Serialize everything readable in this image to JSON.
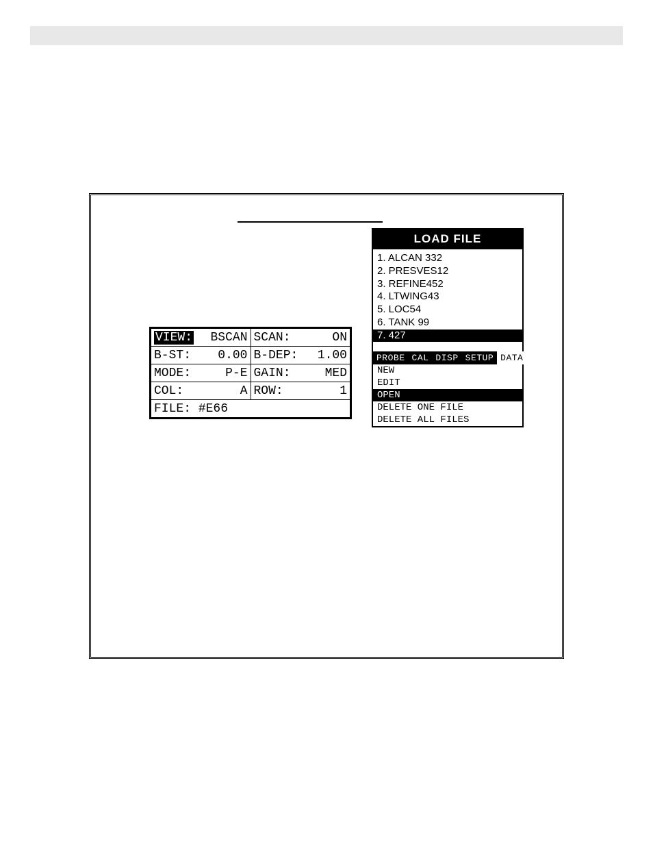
{
  "settings": {
    "rows": [
      {
        "l_label": "VIEW:",
        "l_value": "BSCAN",
        "l_label_inverted": true,
        "r_label": "SCAN:",
        "r_value": "ON"
      },
      {
        "l_label": "B-ST:",
        "l_value": "0.00",
        "r_label": "B-DEP:",
        "r_value": "1.00"
      },
      {
        "l_label": "MODE:",
        "l_value": "P-E",
        "r_label": "GAIN:",
        "r_value": "MED"
      },
      {
        "l_label": "COL:",
        "l_value": "A",
        "r_label": "ROW:",
        "r_value": "1"
      }
    ],
    "file_label": "FILE:",
    "file_value": "#E66"
  },
  "load_panel": {
    "title": "LOAD FILE",
    "files": [
      {
        "text": "1. ALCAN 332",
        "selected": false
      },
      {
        "text": "2. PRESVES12",
        "selected": false
      },
      {
        "text": "3. REFINE452",
        "selected": false
      },
      {
        "text": "4. LTWING43",
        "selected": false
      },
      {
        "text": "5. LOC54",
        "selected": false
      },
      {
        "text": "6. TANK 99",
        "selected": false
      },
      {
        "text": "7. 427",
        "selected": true
      }
    ],
    "tabs": [
      {
        "label": "PROBE",
        "active": false
      },
      {
        "label": "CAL",
        "active": false
      },
      {
        "label": "DISP",
        "active": false
      },
      {
        "label": "SETUP",
        "active": false
      },
      {
        "label": "DATA",
        "active": true
      }
    ],
    "menu": [
      {
        "label": "NEW",
        "selected": false
      },
      {
        "label": "EDIT",
        "selected": false
      },
      {
        "label": "OPEN",
        "selected": true
      },
      {
        "label": "DELETE ONE FILE",
        "selected": false
      },
      {
        "label": "DELETE ALL FILES",
        "selected": false
      }
    ]
  },
  "colors": {
    "page_bg": "#ffffff",
    "topbar_bg": "#e8e8e8",
    "border": "#000000",
    "text": "#000000",
    "invert_bg": "#000000",
    "invert_fg": "#ffffff"
  }
}
